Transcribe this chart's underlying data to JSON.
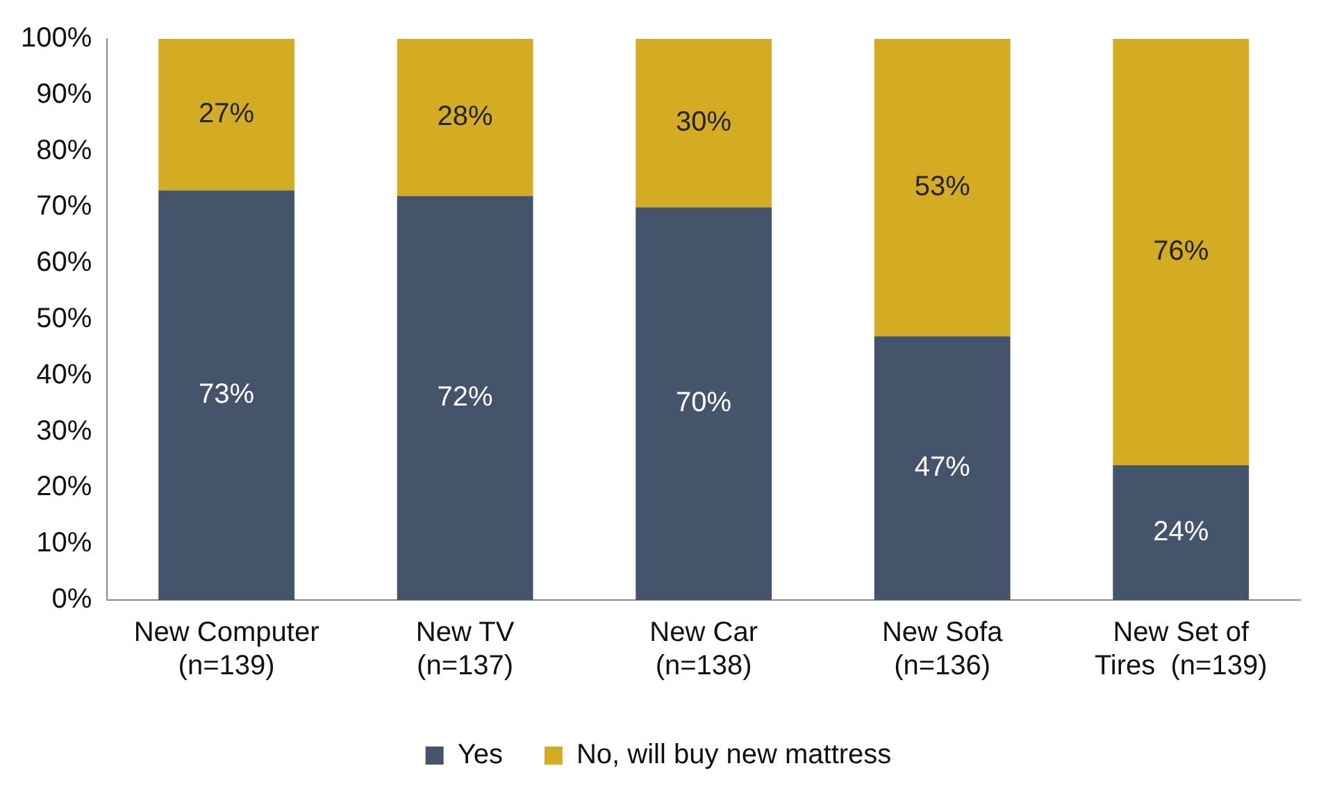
{
  "chart_data": {
    "type": "bar",
    "stacked": true,
    "categories": [
      "New Computer\n(n=139)",
      "New TV\n(n=137)",
      "New Car\n(n=138)",
      "New Sofa\n(n=136)",
      "New Set of\nTires  (n=139)"
    ],
    "series": [
      {
        "name": "Yes",
        "color": "#44546a",
        "values": [
          73,
          72,
          70,
          47,
          24
        ],
        "value_labels": [
          "73%",
          "72%",
          "70%",
          "47%",
          "24%"
        ]
      },
      {
        "name": "No, will buy new mattress",
        "color": "#d4ac22",
        "values": [
          27,
          28,
          30,
          53,
          76
        ],
        "value_labels": [
          "27%",
          "28%",
          "30%",
          "53%",
          "76%"
        ]
      }
    ],
    "ylim": [
      0,
      100
    ],
    "yticks": [
      {
        "value": 0,
        "label": "0%"
      },
      {
        "value": 10,
        "label": "10%"
      },
      {
        "value": 20,
        "label": "20%"
      },
      {
        "value": 30,
        "label": "30%"
      },
      {
        "value": 40,
        "label": "40%"
      },
      {
        "value": 50,
        "label": "50%"
      },
      {
        "value": 60,
        "label": "60%"
      },
      {
        "value": 70,
        "label": "70%"
      },
      {
        "value": 80,
        "label": "80%"
      },
      {
        "value": 90,
        "label": "90%"
      },
      {
        "value": 100,
        "label": "100%"
      }
    ],
    "grid": false,
    "legend": "bottom"
  }
}
